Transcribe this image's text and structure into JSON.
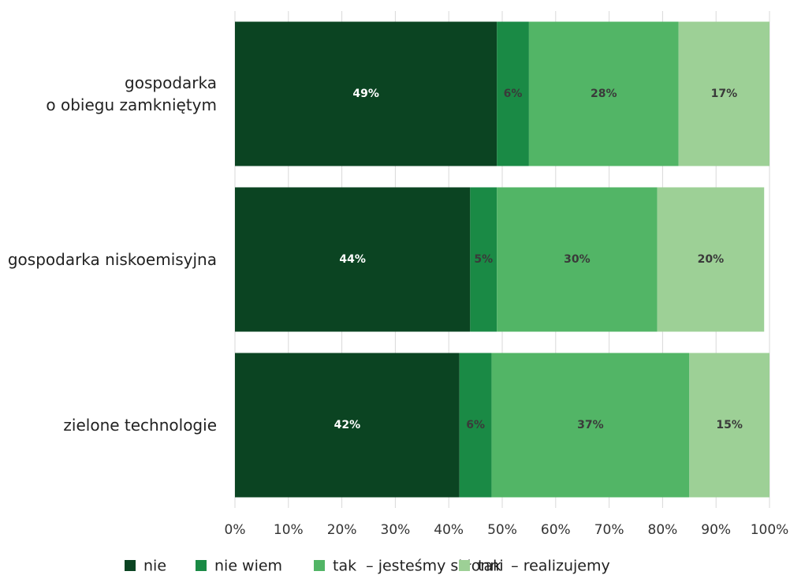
{
  "chart_data": {
    "type": "stacked-bar-horizontal",
    "categories": [
      "gospodarka\no obiegu zamkniętym",
      "gospodarka niskoemisyjna",
      "zielone technologie"
    ],
    "series": [
      {
        "name": "nie",
        "color": "#0b4422",
        "label_color": "#ffffff",
        "values": [
          49,
          44,
          42
        ],
        "value_labels": [
          "49%",
          "44%",
          "42%"
        ]
      },
      {
        "name": "nie wiem",
        "color": "#1a8a45",
        "label_color": "#3a3a3a",
        "values": [
          6,
          5,
          6
        ],
        "value_labels": [
          "6%",
          "5%",
          "6%"
        ]
      },
      {
        "name": "tak  – jesteśmy skłonni",
        "color": "#52b566",
        "label_color": "#3a3a3a",
        "values": [
          28,
          30,
          37
        ],
        "value_labels": [
          "28%",
          "30%",
          "37%"
        ]
      },
      {
        "name": "tak  – realizujemy",
        "color": "#9dd096",
        "label_color": "#3a3a3a",
        "values": [
          17,
          20,
          15
        ],
        "value_labels": [
          "17%",
          "20%",
          "15%"
        ]
      }
    ],
    "xlim": [
      0,
      100
    ],
    "xticks": [
      {
        "value": 0,
        "label": "0%"
      },
      {
        "value": 10,
        "label": "10%"
      },
      {
        "value": 20,
        "label": "20%"
      },
      {
        "value": 30,
        "label": "30%"
      },
      {
        "value": 40,
        "label": "40%"
      },
      {
        "value": 50,
        "label": "50%"
      },
      {
        "value": 60,
        "label": "60%"
      },
      {
        "value": 70,
        "label": "70%"
      },
      {
        "value": 80,
        "label": "80%"
      },
      {
        "value": 90,
        "label": "90%"
      },
      {
        "value": 100,
        "label": "100%"
      }
    ],
    "grid": true,
    "legend": "bottom"
  }
}
